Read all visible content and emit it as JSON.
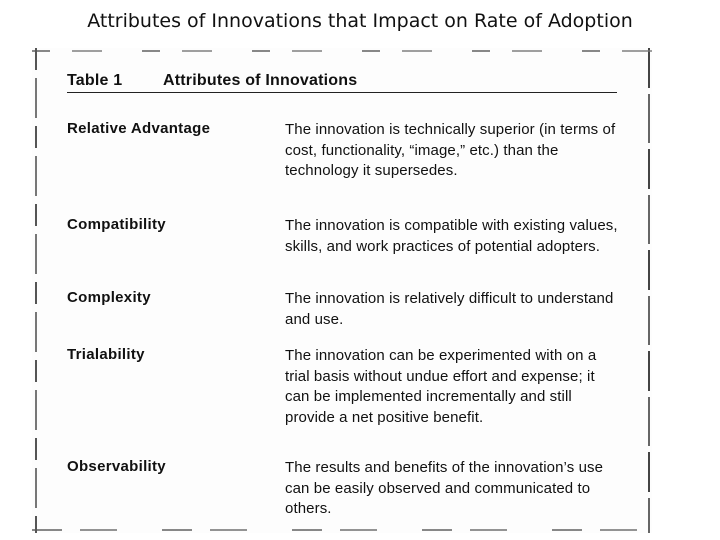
{
  "slide": {
    "title": "Attributes of Innovations that Impact on Rate of Adoption"
  },
  "table": {
    "number": "Table 1",
    "caption": "Attributes of Innovations",
    "rows": [
      {
        "attribute": "Relative Advantage",
        "description": "The innovation is technically superior (in terms of cost, functionality, “image,” etc.) than the technology it supersedes."
      },
      {
        "attribute": "Compatibility",
        "description": "The innovation is compatible with existing values, skills, and work practices of potential adopters."
      },
      {
        "attribute": "Complexity",
        "description": "The innovation is relatively difficult to understand and use."
      },
      {
        "attribute": "Trialability",
        "description": "The innovation can be experimented with on a trial basis without undue effort and expense; it can be implemented incrementally and still provide a net positive benefit."
      },
      {
        "attribute": "Observability",
        "description": "The results and benefits of the innovation’s use can be easily observed and communicated to others."
      }
    ]
  }
}
